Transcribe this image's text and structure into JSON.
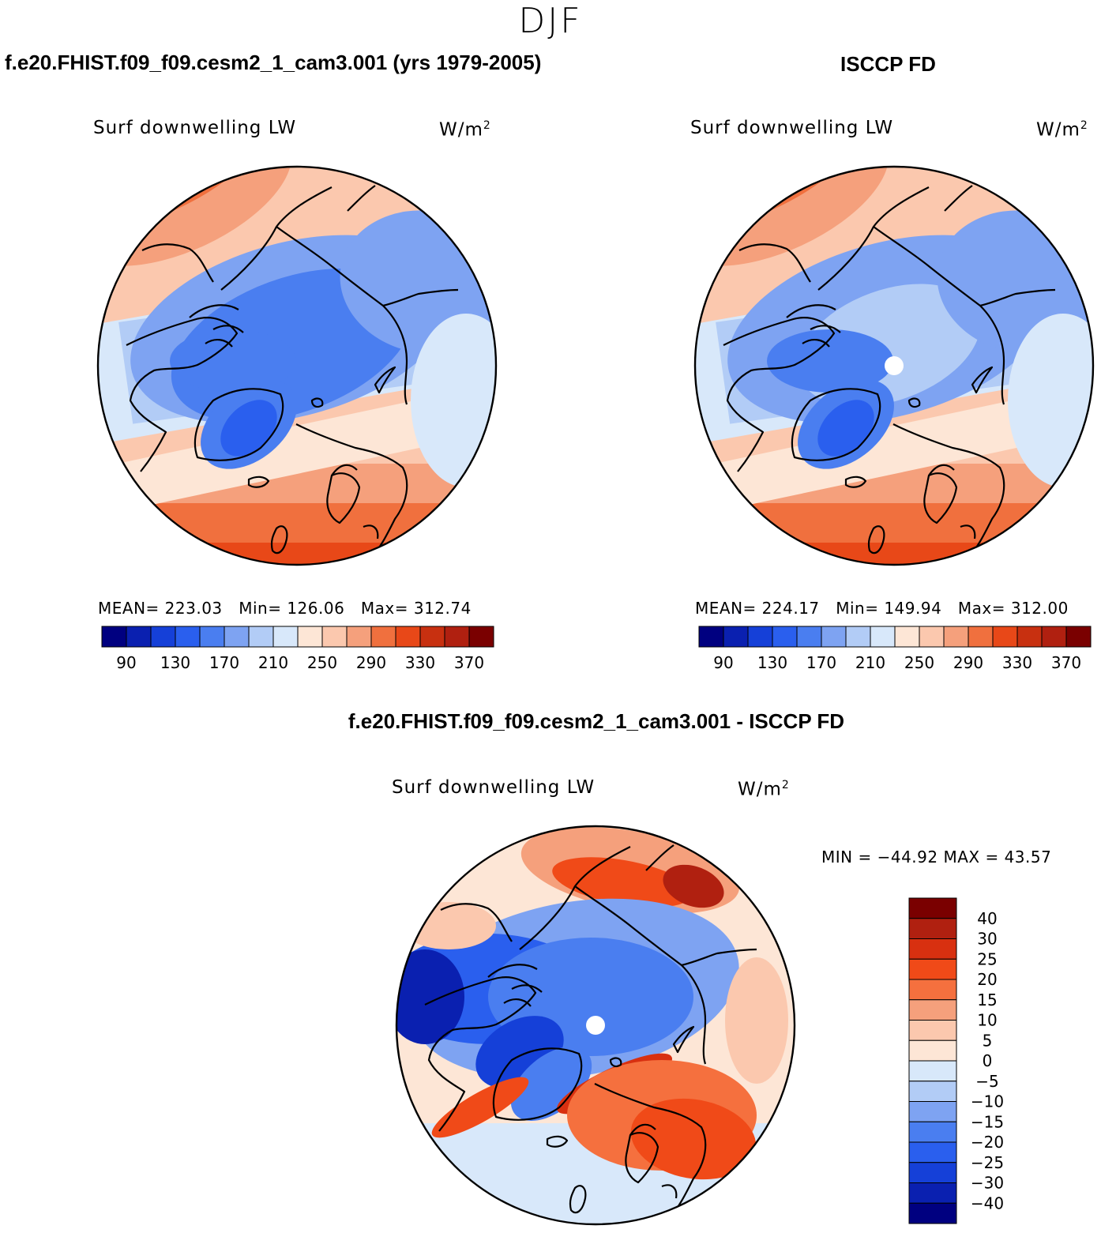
{
  "figure": {
    "season": "DJF",
    "units_base": "W/m",
    "units_exp": "2"
  },
  "panels": {
    "model": {
      "title": "f.e20.FHIST.f09_f09.cesm2_1_cam3.001 (yrs 1979-2005)",
      "variable": "Surf downwelling LW",
      "stats": {
        "mean_label": "MEAN=",
        "mean": "223.03",
        "min_label": "Min=",
        "min": "126.06",
        "max_label": "Max=",
        "max": "312.74"
      }
    },
    "obs": {
      "title": "ISCCP FD",
      "variable": "Surf downwelling LW",
      "stats": {
        "mean_label": "MEAN=",
        "mean": "224.17",
        "min_label": "Min=",
        "min": "149.94",
        "max_label": "Max=",
        "max": "312.00"
      }
    },
    "diff": {
      "title": "f.e20.FHIST.f09_f09.cesm2_1_cam3.001 - ISCCP FD",
      "variable": "Surf downwelling LW",
      "minmax": "MIN = −44.92 MAX =   43.57"
    }
  },
  "chart_data": [
    {
      "type": "heatmap",
      "projection": "north-polar-stereographic",
      "title": "f.e20.FHIST.f09_f09.cesm2_1_cam3.001 (yrs 1979-2005)",
      "variable": "Surf downwelling LW",
      "units": "W/m2",
      "mean": 223.03,
      "min": 126.06,
      "max": 312.74,
      "colorbar": {
        "orientation": "horizontal",
        "levels": [
          90,
          110,
          130,
          150,
          170,
          190,
          210,
          230,
          250,
          270,
          290,
          310,
          330,
          350,
          370
        ],
        "tick_labels": [
          "90",
          "130",
          "170",
          "210",
          "250",
          "290",
          "330",
          "370"
        ],
        "colors": [
          "#000080",
          "#0a20b0",
          "#1540d8",
          "#2a5fee",
          "#4a7ef0",
          "#7ea3f2",
          "#b2ccf6",
          "#d8e8fa",
          "#fde6d6",
          "#fbc8ae",
          "#f5a07c",
          "#f0703e",
          "#e84818",
          "#c83010",
          "#b02010",
          "#7a0000"
        ]
      }
    },
    {
      "type": "heatmap",
      "projection": "north-polar-stereographic",
      "title": "ISCCP FD",
      "variable": "Surf downwelling LW",
      "units": "W/m2",
      "mean": 224.17,
      "min": 149.94,
      "max": 312.0,
      "colorbar": {
        "orientation": "horizontal",
        "levels": [
          90,
          110,
          130,
          150,
          170,
          190,
          210,
          230,
          250,
          270,
          290,
          310,
          330,
          350,
          370
        ],
        "tick_labels": [
          "90",
          "130",
          "170",
          "210",
          "250",
          "290",
          "330",
          "370"
        ],
        "colors": [
          "#000080",
          "#0a20b0",
          "#1540d8",
          "#2a5fee",
          "#4a7ef0",
          "#7ea3f2",
          "#b2ccf6",
          "#d8e8fa",
          "#fde6d6",
          "#fbc8ae",
          "#f5a07c",
          "#f0703e",
          "#e84818",
          "#c83010",
          "#b02010",
          "#7a0000"
        ]
      }
    },
    {
      "type": "heatmap",
      "projection": "north-polar-stereographic",
      "title": "f.e20.FHIST.f09_f09.cesm2_1_cam3.001 - ISCCP FD",
      "variable": "Surf downwelling LW",
      "units": "W/m2",
      "min": -44.92,
      "max": 43.57,
      "colorbar": {
        "orientation": "vertical",
        "tick_labels": [
          "40",
          "30",
          "25",
          "20",
          "15",
          "10",
          "5",
          "0",
          "−5",
          "−10",
          "−15",
          "−20",
          "−25",
          "−30",
          "−40"
        ],
        "colors": [
          "#7a0000",
          "#b02010",
          "#d83010",
          "#f04a18",
          "#f5703e",
          "#f5a07c",
          "#fbc8ae",
          "#fde6d6",
          "#d8e8fa",
          "#b2ccf6",
          "#7ea3f2",
          "#4a7ef0",
          "#2a5fee",
          "#1540d8",
          "#0a20b0",
          "#000080"
        ]
      }
    }
  ]
}
